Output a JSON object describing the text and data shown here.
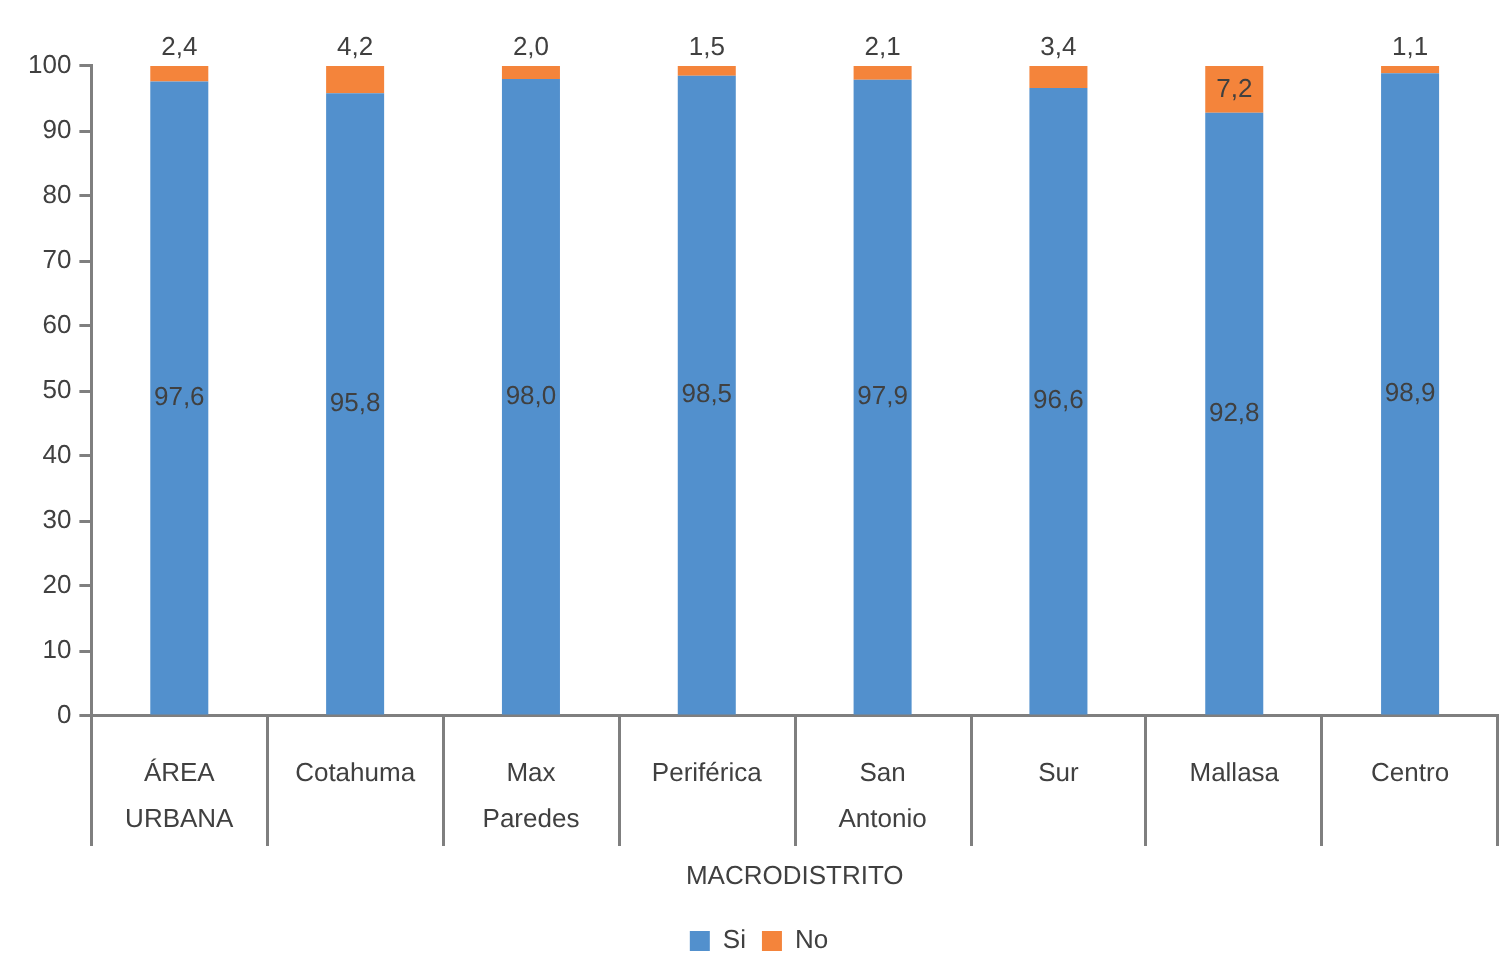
{
  "chart_data": {
    "type": "bar",
    "stacked": true,
    "categories": [
      "ÁREA URBANA",
      "Cotahuma",
      "Max Paredes",
      "Periférica",
      "San Antonio",
      "Sur",
      "Mallasa",
      "Centro"
    ],
    "xlabel": "MACRODISTRITO",
    "series": [
      {
        "name": "Si",
        "color": "#5290cd",
        "values": [
          97.6,
          95.8,
          98.0,
          98.5,
          97.9,
          96.6,
          92.8,
          98.9
        ],
        "value_labels": [
          "97,6",
          "95,8",
          "98,0",
          "98,5",
          "97,9",
          "96,6",
          "92,8",
          "98,9"
        ]
      },
      {
        "name": "No",
        "color": "#f4843b",
        "values": [
          2.4,
          4.2,
          2.0,
          1.5,
          2.1,
          3.4,
          7.2,
          1.1
        ],
        "value_labels": [
          "2,4",
          "4,2",
          "2,0",
          "1,5",
          "2,1",
          "3,4",
          "7,2",
          "1,1"
        ]
      }
    ],
    "ylim": [
      0,
      100
    ],
    "yticks": [
      0,
      10,
      20,
      30,
      40,
      50,
      60,
      70,
      80,
      90,
      100
    ],
    "grid": false,
    "legend": "bottom"
  }
}
